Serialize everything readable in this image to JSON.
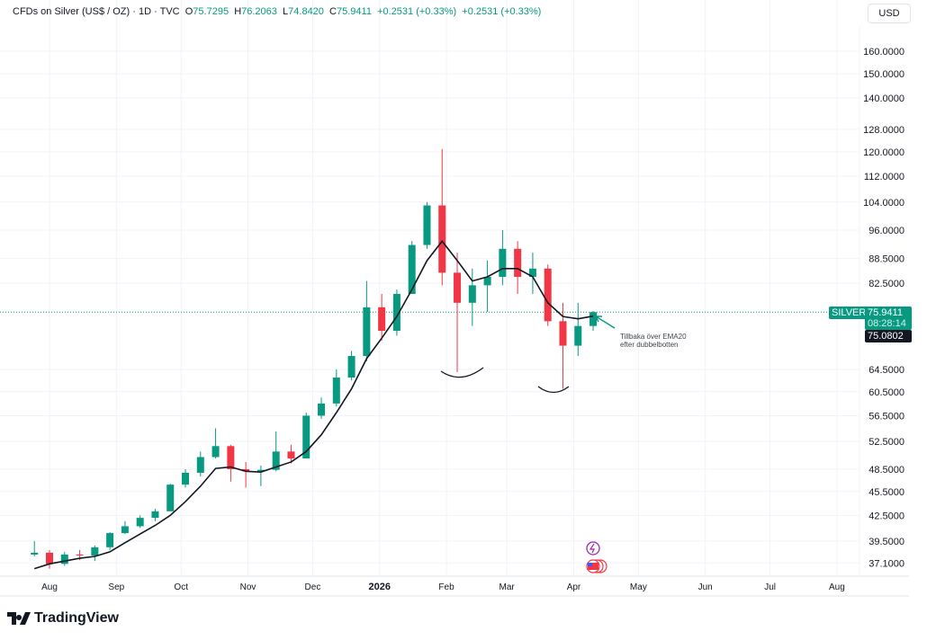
{
  "header": {
    "symbol": "CFDs on Silver (US$ / OZ) · 1D · TVC",
    "o_label": "O",
    "o": "75.7295",
    "h_label": "H",
    "h": "76.2063",
    "l_label": "L",
    "l": "74.8420",
    "c_label": "C",
    "c": "75.9411",
    "change1": "+0.2531 (+0.33%)",
    "change2": "+0.2531 (+0.33%)"
  },
  "currency_button": "USD",
  "price_tags": {
    "symbol": "SILVER",
    "last": "75.9411",
    "countdown": "08:28:14",
    "ema": "75.0802"
  },
  "annotation": {
    "line1": "Tillbaka över EMA20",
    "line2": "efter dubbelbotten"
  },
  "brand": "TradingView",
  "colors": {
    "up": "#089981",
    "down": "#f23645",
    "ema": "#131722",
    "grid": "#f0f3fa"
  },
  "chart_data": {
    "type": "candlestick",
    "scale": "log",
    "title": "CFDs on Silver (US$ / OZ) · 1D · TVC",
    "y_ticks": [
      160,
      150,
      140,
      128,
      120,
      112,
      104,
      96,
      88.5,
      82.5,
      64.5,
      60.5,
      56.5,
      52.5,
      48.5,
      45.5,
      42.5,
      39.5,
      37.1
    ],
    "y_tick_labels": [
      "160.0000",
      "150.0000",
      "140.0000",
      "128.0000",
      "120.0000",
      "112.0000",
      "104.0000",
      "96.0000",
      "88.5000",
      "82.5000",
      "64.5000",
      "60.5000",
      "56.5000",
      "52.5000",
      "48.5000",
      "45.5000",
      "42.5000",
      "39.5000",
      "37.1000"
    ],
    "x_ticks": [
      {
        "label": "Aug",
        "day": 0
      },
      {
        "label": "Sep",
        "day": 31
      },
      {
        "label": "Oct",
        "day": 61
      },
      {
        "label": "Nov",
        "day": 92
      },
      {
        "label": "Dec",
        "day": 122
      },
      {
        "label": "2026",
        "day": 153
      },
      {
        "label": "Feb",
        "day": 184
      },
      {
        "label": "Mar",
        "day": 212
      },
      {
        "label": "Apr",
        "day": 243
      },
      {
        "label": "May",
        "day": 273
      },
      {
        "label": "Jun",
        "day": 304
      },
      {
        "label": "Jul",
        "day": 334
      },
      {
        "label": "Aug",
        "day": 365
      }
    ],
    "series_note": "approximate weekly OHLC, day offset from 2025-08-01",
    "candles": [
      [
        -9,
        38,
        39.5,
        37.8,
        38.2
      ],
      [
        -2,
        38.2,
        38.5,
        36.5,
        37
      ],
      [
        5,
        37,
        38.3,
        36.8,
        38
      ],
      [
        12,
        38,
        38.5,
        37.4,
        37.9
      ],
      [
        19,
        37.9,
        39,
        37.3,
        38.8
      ],
      [
        26,
        38.8,
        40.5,
        38.5,
        40.4
      ],
      [
        33,
        40.4,
        41.8,
        40.3,
        41.2
      ],
      [
        40,
        41.2,
        42.5,
        41,
        42.2
      ],
      [
        47,
        42.2,
        43.3,
        41.8,
        43
      ],
      [
        54,
        43,
        46.5,
        43,
        46.4
      ],
      [
        61,
        46.4,
        48.5,
        46,
        48
      ],
      [
        68,
        48,
        51,
        47.5,
        50.2
      ],
      [
        75,
        50.2,
        54.5,
        50,
        51.8
      ],
      [
        82,
        51.8,
        52,
        46.8,
        48.5
      ],
      [
        89,
        48.5,
        49.5,
        46,
        48.2
      ],
      [
        96,
        48.2,
        49,
        46.2,
        48.4
      ],
      [
        103,
        48.4,
        54,
        48.2,
        51
      ],
      [
        110,
        51,
        52,
        49.3,
        50
      ],
      [
        117,
        50,
        57,
        50,
        56.5
      ],
      [
        124,
        56.5,
        59.5,
        56,
        58.5
      ],
      [
        131,
        58.5,
        64.5,
        58,
        63
      ],
      [
        138,
        63,
        68,
        62.5,
        67
      ],
      [
        145,
        67,
        83,
        66,
        77
      ],
      [
        152,
        77,
        80,
        70,
        72
      ],
      [
        159,
        72,
        81,
        71,
        80
      ],
      [
        166,
        80,
        93,
        80,
        92
      ],
      [
        173,
        92,
        104,
        91,
        103
      ],
      [
        180,
        103,
        121,
        82,
        85
      ],
      [
        187,
        85,
        90,
        64,
        78
      ],
      [
        194,
        78,
        86,
        73,
        82
      ],
      [
        201,
        82,
        88,
        76,
        84
      ],
      [
        208,
        84,
        96,
        82,
        91
      ],
      [
        215,
        91,
        93,
        80,
        84
      ],
      [
        222,
        84,
        90,
        80,
        86
      ],
      [
        229,
        86,
        87,
        73,
        74
      ],
      [
        236,
        74,
        78,
        61,
        69
      ],
      [
        243,
        69,
        78,
        67,
        73
      ],
      [
        250,
        73,
        76.2,
        72,
        75.94
      ]
    ],
    "ema20": [
      36.5,
      37,
      37.3,
      37.6,
      37.8,
      38.3,
      39.3,
      40.3,
      41.3,
      42.5,
      44.2,
      46.2,
      48.6,
      48.8,
      48.2,
      48.1,
      48.8,
      49.5,
      51,
      53.5,
      57,
      61,
      66.5,
      70.5,
      75,
      81,
      88,
      93,
      88,
      83,
      84,
      86,
      86,
      84,
      78,
      75,
      74.5,
      75.08
    ],
    "last_price": 75.9411
  }
}
